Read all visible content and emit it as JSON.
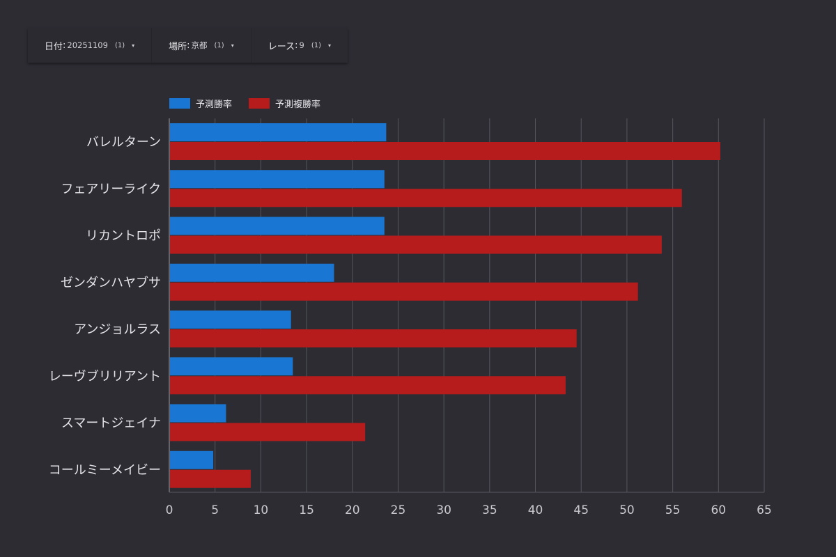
{
  "filters": [
    {
      "key": "日付",
      "value": "20251109",
      "count": "(1)",
      "caret": "▾"
    },
    {
      "key": "場所",
      "value": "京都",
      "count": "(1)",
      "caret": "▾"
    },
    {
      "key": "レース",
      "value": "9",
      "count": "(1)",
      "caret": "▾"
    }
  ],
  "chart_data": {
    "type": "bar",
    "orientation": "horizontal",
    "categories": [
      "バレルターン",
      "フェアリーライク",
      "リカントロポ",
      "ゼンダンハヤブサ",
      "アンジョルラス",
      "レーヴブリリアント",
      "スマートジェイナ",
      "コールミーメイビー"
    ],
    "series": [
      {
        "name": "予測勝率",
        "color": "#1976d2",
        "values": [
          23.7,
          23.5,
          23.5,
          18.0,
          13.3,
          13.5,
          6.2,
          4.8
        ]
      },
      {
        "name": "予測複勝率",
        "color": "#b71c1c",
        "values": [
          60.2,
          56.0,
          53.8,
          51.2,
          44.5,
          43.3,
          21.4,
          8.9
        ]
      }
    ],
    "xlim": [
      0,
      65
    ],
    "x_ticks": [
      "0",
      "5",
      "10",
      "15",
      "20",
      "25",
      "30",
      "35",
      "40",
      "45",
      "50",
      "55",
      "60",
      "65"
    ],
    "grid": true,
    "legend": "top-left"
  }
}
